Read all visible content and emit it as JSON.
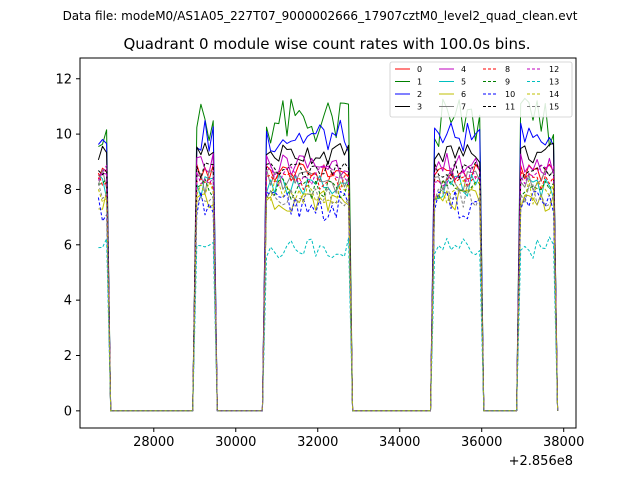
{
  "chart_data": {
    "type": "line",
    "suptitle": "Data file: modeM0/AS1A05_227T07_9000002666_17907cztM0_level2_quad_clean.evt",
    "title": "Quadrant 0 module wise count rates with 100.0s bins.",
    "xlabel": "",
    "ylabel": "",
    "x_offset_label": "+2.856e8",
    "xlim": [
      26200,
      38300
    ],
    "ylim": [
      -0.62,
      12.75
    ],
    "xticks": [
      28000,
      30000,
      32000,
      34000,
      36000,
      38000
    ],
    "xtick_labels": [
      "28000",
      "30000",
      "32000",
      "34000",
      "36000",
      "38000"
    ],
    "yticks": [
      0,
      2,
      4,
      6,
      8,
      10,
      12
    ],
    "ytick_labels": [
      "0",
      "2",
      "4",
      "6",
      "8",
      "10",
      "12"
    ],
    "grid": false,
    "legend_position": "top-right",
    "segments": [
      {
        "start": 26650,
        "end": 26850
      },
      {
        "start": 29050,
        "end": 29450
      },
      {
        "start": 30750,
        "end": 32750
      },
      {
        "start": 34850,
        "end": 35950
      },
      {
        "start": 36950,
        "end": 37750
      }
    ],
    "series": [
      {
        "name": "0",
        "color": "#ff0000",
        "dash": false,
        "base": 8.6,
        "amp": 0.35
      },
      {
        "name": "1",
        "color": "#008000",
        "dash": false,
        "base": 10.4,
        "amp": 0.9
      },
      {
        "name": "2",
        "color": "#0000ff",
        "dash": false,
        "base": 9.9,
        "amp": 0.6
      },
      {
        "name": "3",
        "color": "#000000",
        "dash": false,
        "base": 9.3,
        "amp": 0.4
      },
      {
        "name": "4",
        "color": "#bf00bf",
        "dash": false,
        "base": 8.9,
        "amp": 0.45
      },
      {
        "name": "5",
        "color": "#00bfbf",
        "dash": false,
        "base": 8.1,
        "amp": 0.45
      },
      {
        "name": "6",
        "color": "#bfbf00",
        "dash": false,
        "base": 7.6,
        "amp": 0.4
      },
      {
        "name": "7",
        "color": "#808080",
        "dash": false,
        "base": 8.3,
        "amp": 0.45
      },
      {
        "name": "8",
        "color": "#ff0000",
        "dash": true,
        "base": 8.3,
        "amp": 0.35
      },
      {
        "name": "9",
        "color": "#008000",
        "dash": true,
        "base": 8.0,
        "amp": 0.4
      },
      {
        "name": "10",
        "color": "#0000ff",
        "dash": true,
        "base": 7.4,
        "amp": 0.55
      },
      {
        "name": "11",
        "color": "#000000",
        "dash": true,
        "base": 8.7,
        "amp": 0.35
      },
      {
        "name": "12",
        "color": "#bf00bf",
        "dash": true,
        "base": 8.5,
        "amp": 0.4
      },
      {
        "name": "13",
        "color": "#00bfbf",
        "dash": true,
        "base": 5.9,
        "amp": 0.4
      },
      {
        "name": "14",
        "color": "#bfbf00",
        "dash": true,
        "base": 7.9,
        "amp": 0.45
      },
      {
        "name": "15",
        "color": "#808080",
        "dash": true,
        "base": 7.8,
        "amp": 0.45
      }
    ]
  }
}
